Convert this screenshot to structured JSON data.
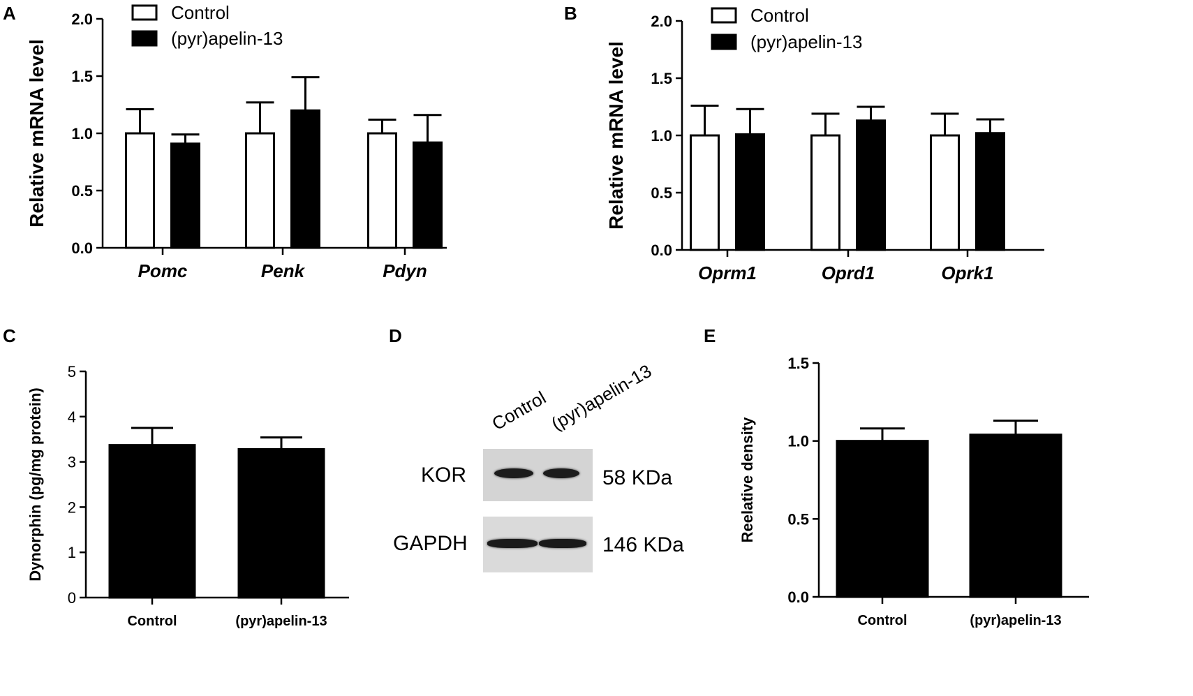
{
  "panels": {
    "A": "A",
    "B": "B",
    "C": "C",
    "D": "D",
    "E": "E"
  },
  "chart_data": [
    {
      "id": "A",
      "type": "bar",
      "categories": [
        "Pomc",
        "Penk",
        "Pdyn"
      ],
      "categories_italic": true,
      "ylabel": "Relative mRNA level",
      "xlabel": "",
      "ylim": [
        0,
        2.0
      ],
      "yticks": [
        "0.0",
        "0.5",
        "1.0",
        "1.5",
        "2.0"
      ],
      "legend": "top-left",
      "series": [
        {
          "name": "Control",
          "fill": "#ffffff",
          "values": [
            1.0,
            1.0,
            1.0
          ],
          "errors": [
            0.21,
            0.27,
            0.12
          ]
        },
        {
          "name": "(pyr)apelin-13",
          "fill": "#000000",
          "values": [
            0.91,
            1.2,
            0.92
          ],
          "errors": [
            0.08,
            0.29,
            0.24
          ]
        }
      ]
    },
    {
      "id": "B",
      "type": "bar",
      "categories": [
        "Oprm1",
        "Oprd1",
        "Oprk1"
      ],
      "categories_italic": true,
      "ylabel": "Relative mRNA level",
      "xlabel": "",
      "ylim": [
        0,
        2.0
      ],
      "yticks": [
        "0.0",
        "0.5",
        "1.0",
        "1.5",
        "2.0"
      ],
      "legend": "top-left",
      "series": [
        {
          "name": "Control",
          "fill": "#ffffff",
          "values": [
            1.0,
            1.0,
            1.0
          ],
          "errors": [
            0.26,
            0.19,
            0.19
          ]
        },
        {
          "name": "(pyr)apelin-13",
          "fill": "#000000",
          "values": [
            1.01,
            1.13,
            1.02
          ],
          "errors": [
            0.22,
            0.12,
            0.12
          ]
        }
      ]
    },
    {
      "id": "C",
      "type": "bar",
      "categories": [
        "Control",
        "(pyr)apelin-13"
      ],
      "categories_italic": false,
      "ylabel": "Dynorphin (pg/mg protein)",
      "xlabel": "",
      "ylim": [
        0,
        5
      ],
      "yticks": [
        "0",
        "1",
        "2",
        "3",
        "4",
        "5"
      ],
      "series": [
        {
          "name": "",
          "fill": "#000000",
          "values": [
            3.37,
            3.28
          ],
          "errors": [
            0.38,
            0.26
          ]
        }
      ]
    },
    {
      "id": "E",
      "type": "bar",
      "categories": [
        "Control",
        "(pyr)apelin-13"
      ],
      "categories_italic": false,
      "ylabel": "Reelative density",
      "xlabel": "",
      "ylim": [
        0,
        1.5
      ],
      "yticks": [
        "0.0",
        "0.5",
        "1.0",
        "1.5"
      ],
      "series": [
        {
          "name": "",
          "fill": "#000000",
          "values": [
            1.0,
            1.04
          ],
          "errors": [
            0.08,
            0.09
          ]
        }
      ]
    }
  ],
  "blot": {
    "lanes": [
      "Control",
      "(pyr)apelin-13"
    ],
    "rows": [
      {
        "protein": "KOR",
        "size": "58 KDa"
      },
      {
        "protein": "GAPDH",
        "size": "146 KDa"
      }
    ]
  }
}
